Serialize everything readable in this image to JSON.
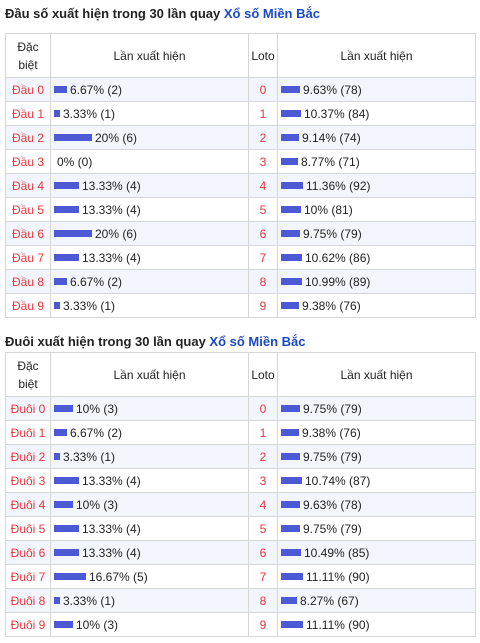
{
  "section1": {
    "title_prefix": "Đầu số xuất hiện trong 30 lần quay ",
    "title_link": "Xổ số Miền Bắc",
    "headers": {
      "special": "Đặc biệt",
      "appear": "Lần xuất hiện",
      "loto": "Loto",
      "appear2": "Lần xuất hiện"
    },
    "rows": [
      {
        "label": "Đầu 0",
        "pct": 6.67,
        "text": "6.67% (2)",
        "loto": "0",
        "lpct": 9.63,
        "ltext": "9.63% (78)"
      },
      {
        "label": "Đầu 1",
        "pct": 3.33,
        "text": "3.33% (1)",
        "loto": "1",
        "lpct": 10.37,
        "ltext": "10.37% (84)"
      },
      {
        "label": "Đầu 2",
        "pct": 20,
        "text": "20% (6)",
        "loto": "2",
        "lpct": 9.14,
        "ltext": "9.14% (74)"
      },
      {
        "label": "Đầu 3",
        "pct": 0,
        "text": "0% (0)",
        "loto": "3",
        "lpct": 8.77,
        "ltext": "8.77% (71)"
      },
      {
        "label": "Đầu 4",
        "pct": 13.33,
        "text": "13.33% (4)",
        "loto": "4",
        "lpct": 11.36,
        "ltext": "11.36% (92)"
      },
      {
        "label": "Đầu 5",
        "pct": 13.33,
        "text": "13.33% (4)",
        "loto": "5",
        "lpct": 10,
        "ltext": "10% (81)"
      },
      {
        "label": "Đầu 6",
        "pct": 20,
        "text": "20% (6)",
        "loto": "6",
        "lpct": 9.75,
        "ltext": "9.75% (79)"
      },
      {
        "label": "Đầu 7",
        "pct": 13.33,
        "text": "13.33% (4)",
        "loto": "7",
        "lpct": 10.62,
        "ltext": "10.62% (86)"
      },
      {
        "label": "Đầu 8",
        "pct": 6.67,
        "text": "6.67% (2)",
        "loto": "8",
        "lpct": 10.99,
        "ltext": "10.99% (89)"
      },
      {
        "label": "Đầu 9",
        "pct": 3.33,
        "text": "3.33% (1)",
        "loto": "9",
        "lpct": 9.38,
        "ltext": "9.38% (76)"
      }
    ]
  },
  "section2": {
    "title_prefix": "Đuôi xuất hiện trong 30 lần quay ",
    "title_link": "Xổ số Miền Bắc",
    "headers": {
      "special": "Đặc biệt",
      "appear": "Lần xuất hiện",
      "loto": "Loto",
      "appear2": "Lần xuất hiện"
    },
    "rows": [
      {
        "label": "Đuôi 0",
        "pct": 10,
        "text": "10% (3)",
        "loto": "0",
        "lpct": 9.75,
        "ltext": "9.75% (79)"
      },
      {
        "label": "Đuôi 1",
        "pct": 6.67,
        "text": "6.67% (2)",
        "loto": "1",
        "lpct": 9.38,
        "ltext": "9.38% (76)"
      },
      {
        "label": "Đuôi 2",
        "pct": 3.33,
        "text": "3.33% (1)",
        "loto": "2",
        "lpct": 9.75,
        "ltext": "9.75% (79)"
      },
      {
        "label": "Đuôi 3",
        "pct": 13.33,
        "text": "13.33% (4)",
        "loto": "3",
        "lpct": 10.74,
        "ltext": "10.74% (87)"
      },
      {
        "label": "Đuôi 4",
        "pct": 10,
        "text": "10% (3)",
        "loto": "4",
        "lpct": 9.63,
        "ltext": "9.63% (78)"
      },
      {
        "label": "Đuôi 5",
        "pct": 13.33,
        "text": "13.33% (4)",
        "loto": "5",
        "lpct": 9.75,
        "ltext": "9.75% (79)"
      },
      {
        "label": "Đuôi 6",
        "pct": 13.33,
        "text": "13.33% (4)",
        "loto": "6",
        "lpct": 10.49,
        "ltext": "10.49% (85)"
      },
      {
        "label": "Đuôi 7",
        "pct": 16.67,
        "text": "16.67% (5)",
        "loto": "7",
        "lpct": 11.11,
        "ltext": "11.11% (90)"
      },
      {
        "label": "Đuôi 8",
        "pct": 3.33,
        "text": "3.33% (1)",
        "loto": "8",
        "lpct": 8.27,
        "ltext": "8.27% (67)"
      },
      {
        "label": "Đuôi 9",
        "pct": 10,
        "text": "10% (3)",
        "loto": "9",
        "lpct": 11.11,
        "ltext": "11.11% (90)"
      }
    ]
  },
  "colors": {
    "bar": "#4b5ad4",
    "label": "#e8383a",
    "link": "#1a49c8",
    "zebra": "#f2f6fc"
  }
}
